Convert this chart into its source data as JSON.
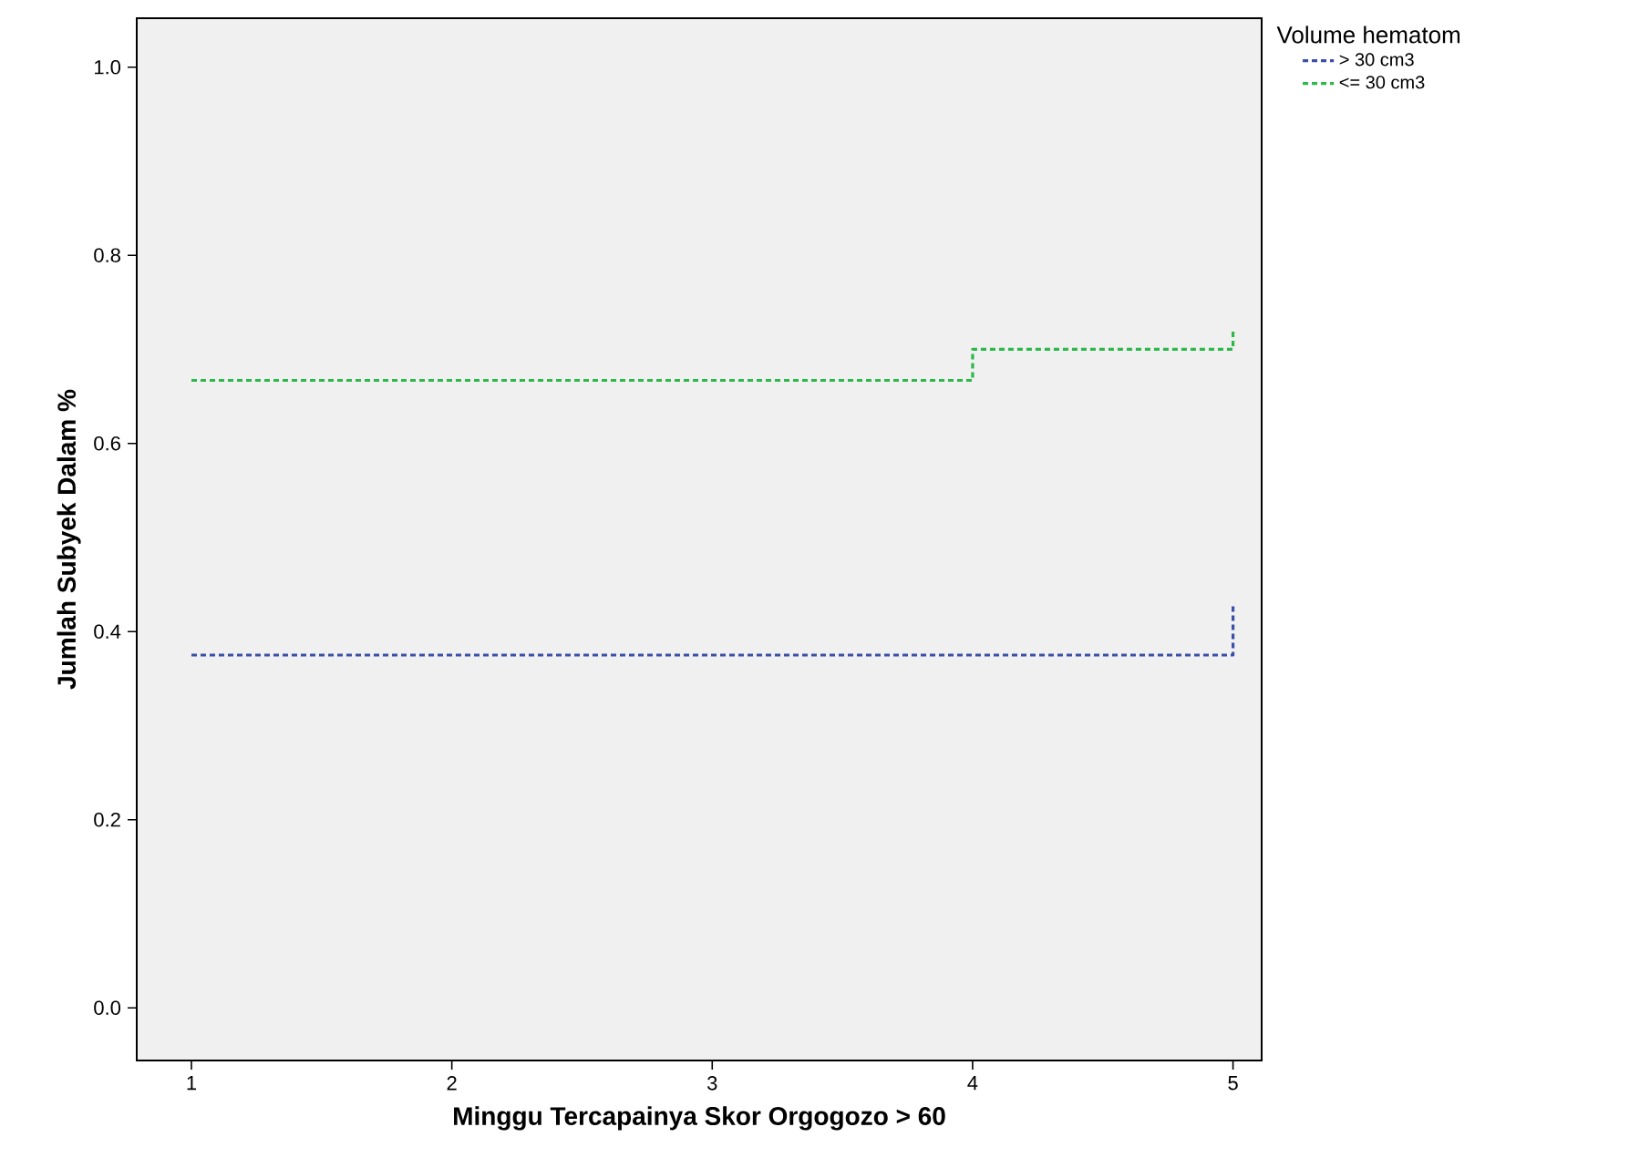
{
  "chart_data": {
    "type": "step",
    "xlabel": "Minggu Tercapainya Skor Orgogozo > 60",
    "ylabel": "Jumlah Subyek Dalam %",
    "legend_title": "Volume hematom",
    "xlim": [
      0.79,
      5.11
    ],
    "ylim": [
      -0.056,
      1.052
    ],
    "xticks": [
      1,
      2,
      3,
      4,
      5
    ],
    "yticks": [
      {
        "value": 0,
        "label": "0.0"
      },
      {
        "value": 0.2,
        "label": "0.2"
      },
      {
        "value": 0.4,
        "label": "0.4"
      },
      {
        "value": 0.6,
        "label": "0.6"
      },
      {
        "value": 0.8,
        "label": "0.8"
      },
      {
        "value": 1.0,
        "label": "1.0"
      }
    ],
    "legend": "right",
    "line_style": "dashed",
    "grid": false,
    "series": [
      {
        "name": "> 30 cm3",
        "color": "#3c4fa8",
        "x": [
          1,
          5
        ],
        "values": [
          0.375,
          0.43
        ]
      },
      {
        "name": "<= 30 cm3",
        "color": "#2db84a",
        "x": [
          1,
          4,
          5
        ],
        "values": [
          0.667,
          0.7,
          0.72
        ]
      }
    ]
  }
}
